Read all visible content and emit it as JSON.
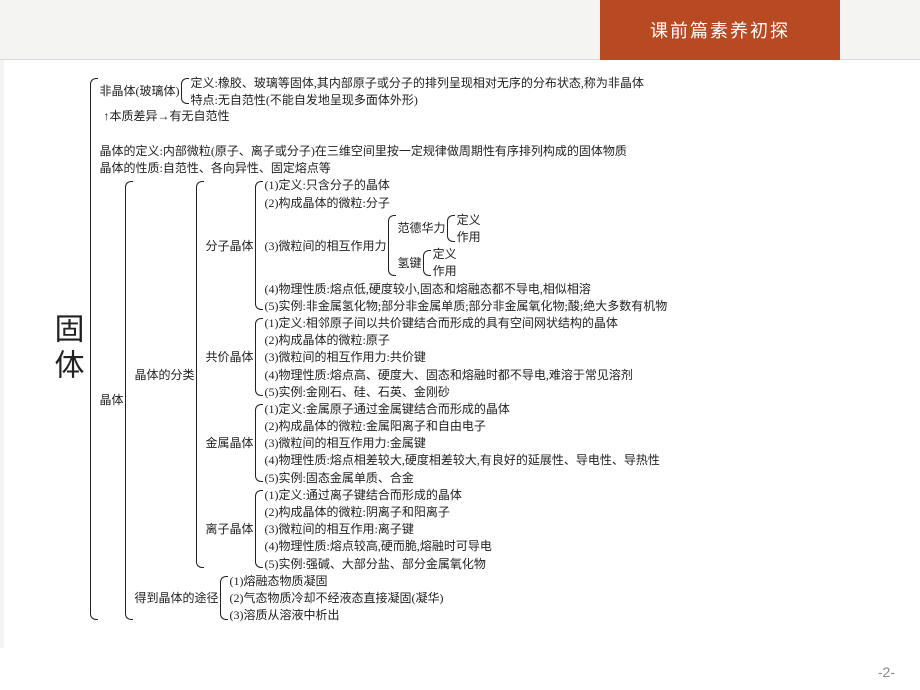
{
  "header": {
    "title": "课前篇素养初探",
    "tab_bg": "#b74a22",
    "tab_fg": "#ffffff"
  },
  "page_number": "-2-",
  "diagram": {
    "root": "固体",
    "feijingti": {
      "label": "非晶体(玻璃体)",
      "def": "定义:橡胶、玻璃等固体,其内部原子或分子的排列呈现相对无序的分布状态,称为非晶体",
      "feat": "特点:无自范性(不能自发地呈现多面体外形)"
    },
    "diff_arrow": "↑本质差异→有无自范性",
    "jingti": {
      "label": "晶体",
      "def": "晶体的定义:内部微粒(原子、离子或分子)在三维空间里按一定规律做周期性有序排列构成的固体物质",
      "prop": "晶体的性质:自范性、各向异性、固定熔点等",
      "classify_label": "晶体的分类",
      "molecular": {
        "label": "分子晶体",
        "i1": "(1)定义:只含分子的晶体",
        "i2": "(2)构成晶体的微粒:分子",
        "i3_label": "(3)微粒间的相互作用力",
        "vdw_label": "范德华力",
        "vdw_def": "定义",
        "vdw_eff": "作用",
        "hb_label": "氢键",
        "hb_def": "定义",
        "hb_eff": "作用",
        "i4": "(4)物理性质:熔点低,硬度较小,固态和熔融态都不导电,相似相溶",
        "i5": "(5)实例:非金属氢化物;部分非金属单质;部分非金属氧化物;酸;绝大多数有机物"
      },
      "covalent": {
        "label": "共价晶体",
        "i1": "(1)定义:相邻原子间以共价键结合而形成的具有空间网状结构的晶体",
        "i2": "(2)构成晶体的微粒:原子",
        "i3": "(3)微粒间的相互作用力:共价键",
        "i4": "(4)物理性质:熔点高、硬度大、固态和熔融时都不导电,难溶于常见溶剂",
        "i5": "(5)实例:金刚石、硅、石英、金刚砂"
      },
      "metal": {
        "label": "金属晶体",
        "i1": "(1)定义:金属原子通过金属键结合而形成的晶体",
        "i2": "(2)构成晶体的微粒:金属阳离子和自由电子",
        "i3": "(3)微粒间的相互作用力:金属键",
        "i4": "(4)物理性质:熔点相差较大,硬度相差较大,有良好的延展性、导电性、导热性",
        "i5": "(5)实例:固态金属单质、合金"
      },
      "ionic": {
        "label": "离子晶体",
        "i1": "(1)定义:通过离子键结合而形成的晶体",
        "i2": "(2)构成晶体的微粒:阴离子和阳离子",
        "i3": "(3)微粒间的相互作用:离子键",
        "i4": "(4)物理性质:熔点较高,硬而脆,熔融时可导电",
        "i5": "(5)实例:强碱、大部分盐、部分金属氧化物"
      },
      "obtain_label": "得到晶体的途径",
      "obtain": {
        "i1": "(1)熔融态物质凝固",
        "i2": "(2)气态物质冷却不经液态直接凝固(凝华)",
        "i3": "(3)溶质从溶液中析出"
      }
    }
  }
}
